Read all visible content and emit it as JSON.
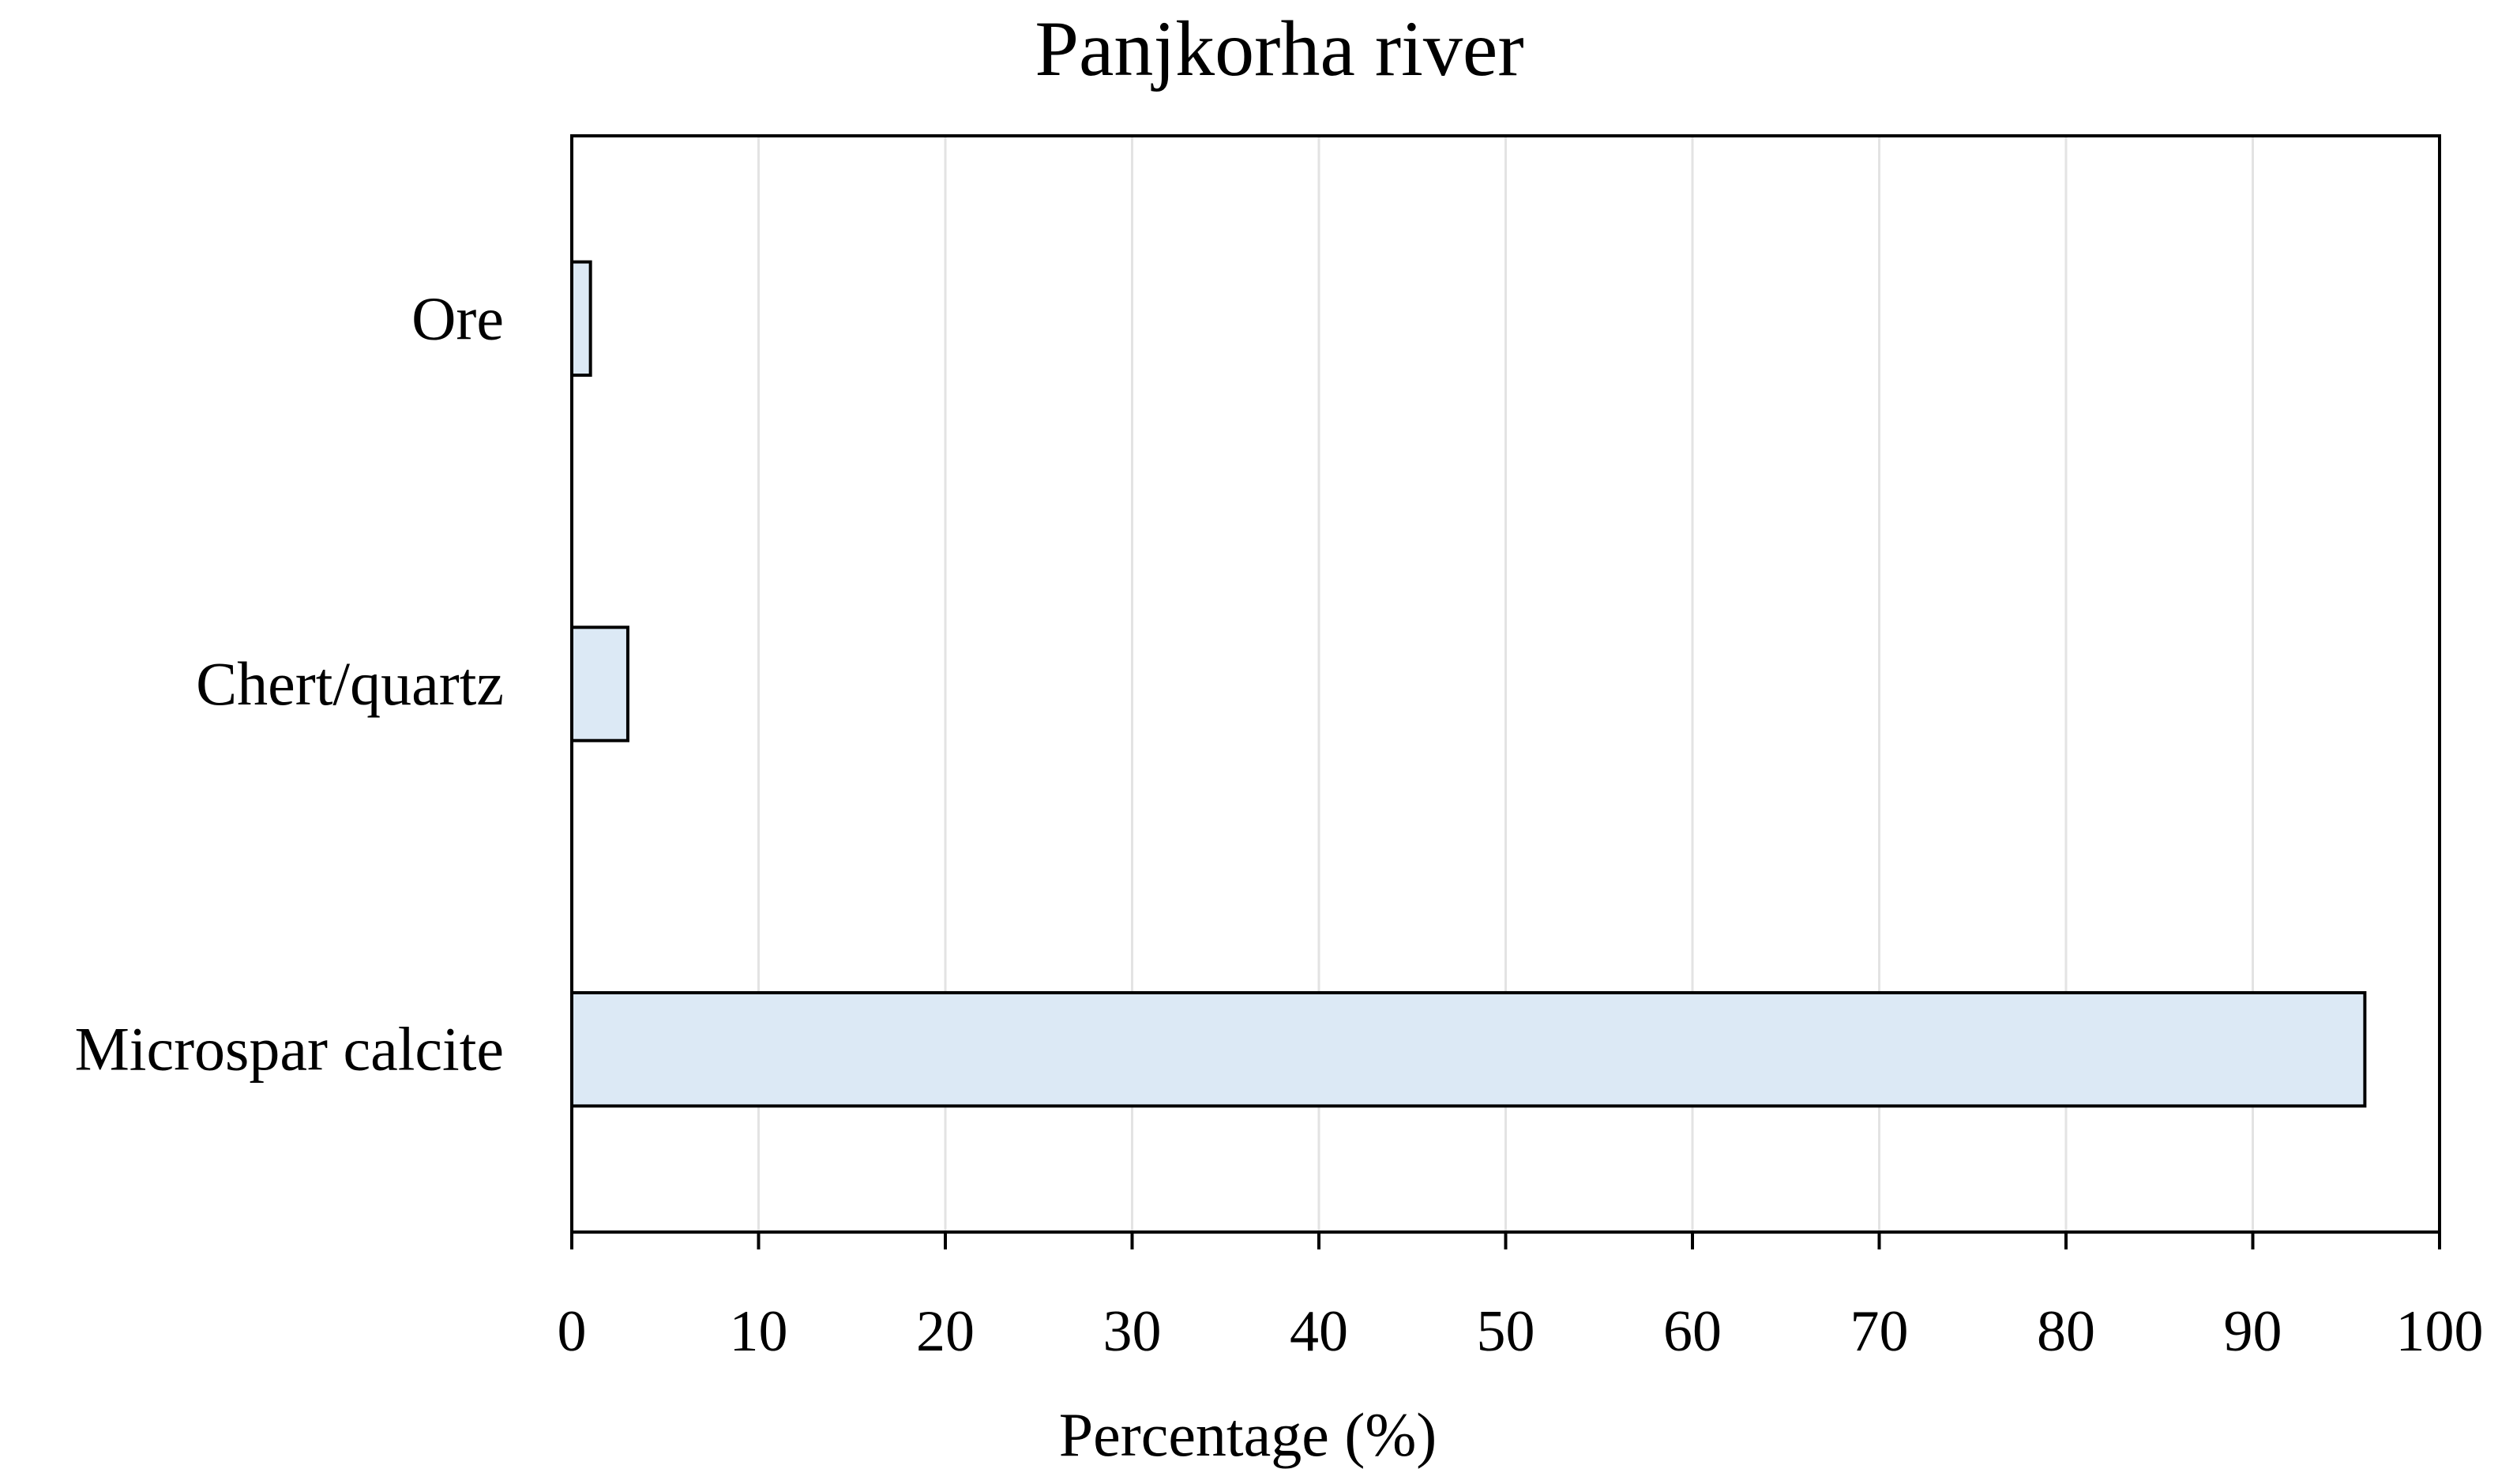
{
  "chart_data": {
    "type": "bar",
    "orientation": "horizontal",
    "title": "Panjkorha river",
    "xlabel": "Percentage (%)",
    "ylabel": "",
    "categories": [
      "Ore",
      "Chert/quartz",
      "Microspar calcite"
    ],
    "values": [
      1,
      3,
      96
    ],
    "xlim": [
      0,
      100
    ],
    "x_ticks": [
      "0",
      "10",
      "20",
      "30",
      "40",
      "50",
      "60",
      "70",
      "80",
      "90",
      "100"
    ],
    "grid": "vertical",
    "legend": "none",
    "bar_fill_color": "#dce9f5",
    "bar_edge_color": "#000000",
    "grid_color": "#e3e3e3"
  }
}
